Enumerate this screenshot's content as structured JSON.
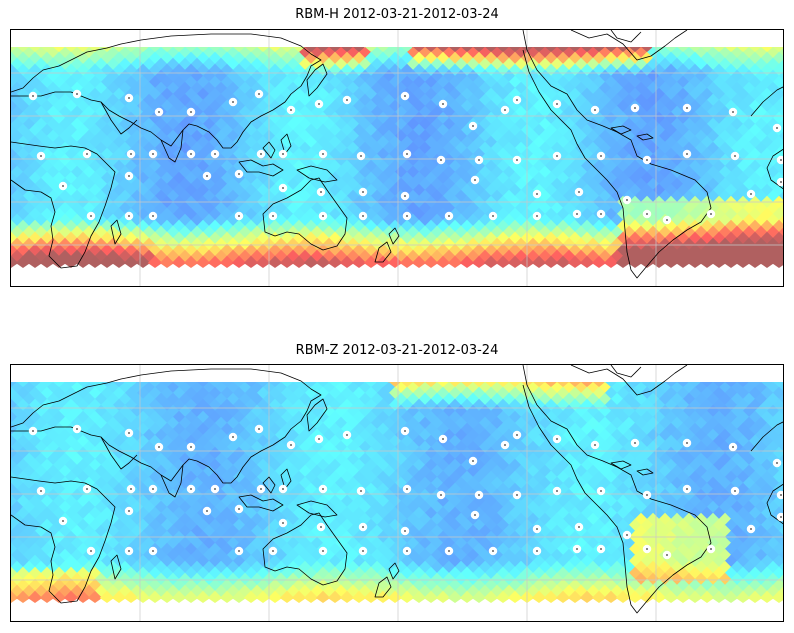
{
  "panels": [
    {
      "title": "RBM-H 2012-03-21-2012-03-24",
      "field": "rbm-h"
    },
    {
      "title": "RBM-Z 2012-03-21-2012-03-24",
      "field": "rbm-z"
    }
  ],
  "map": {
    "projection": "equirectangular",
    "central_longitude": 150,
    "coastlines": true,
    "gridlines": true,
    "colormap": "jet",
    "alpha": 0.6,
    "station_marker_color": "#ffffff"
  }
}
